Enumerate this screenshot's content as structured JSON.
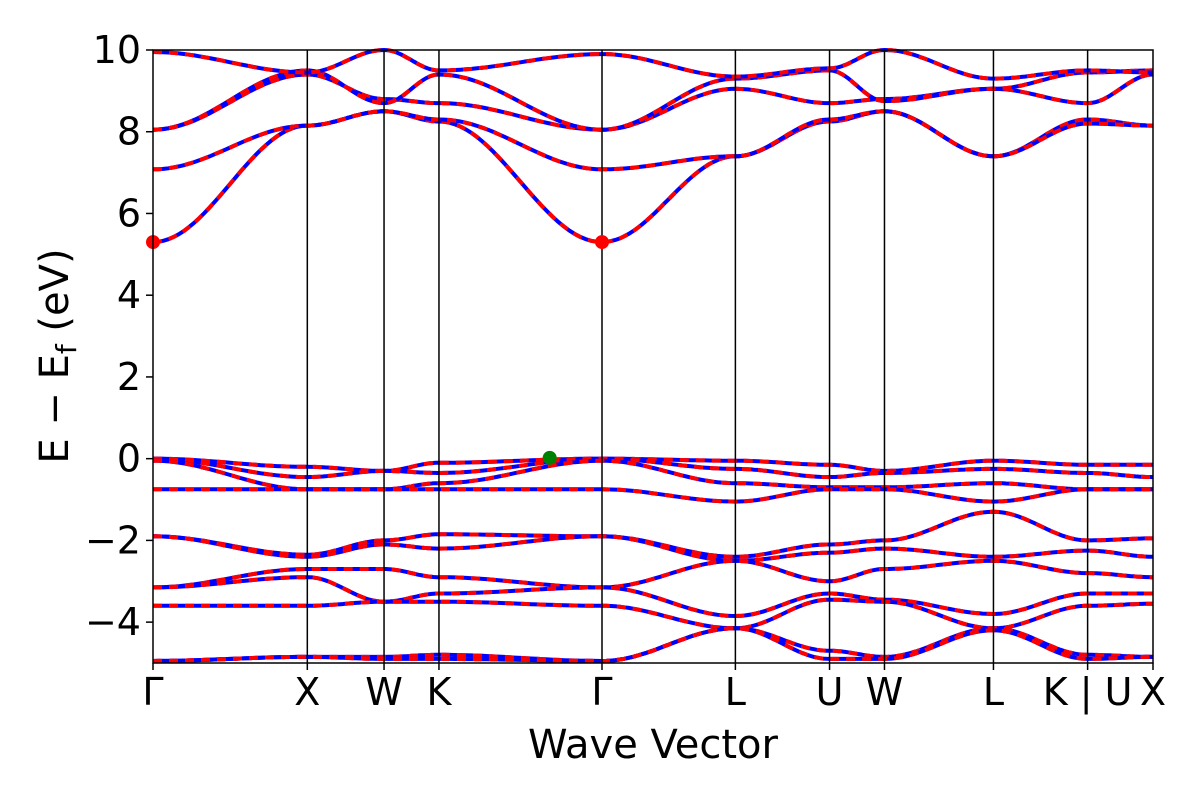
{
  "chart_data": {
    "type": "line",
    "title": "",
    "xlabel": "Wave Vector",
    "ylabel": "E − E",
    "ylabel_subscript": "f",
    "ylabel_unit": " (eV)",
    "ylim": [
      -5,
      10
    ],
    "yticks": [
      -4,
      -2,
      0,
      2,
      4,
      6,
      8,
      10
    ],
    "ytick_labels": [
      "−4",
      "−2",
      "0",
      "2",
      "4",
      "6",
      "8",
      "10"
    ],
    "xlim": [
      0,
      11.47
    ],
    "kpoints": [
      {
        "label": "Γ",
        "x": 0
      },
      {
        "label": "X",
        "x": 1.77
      },
      {
        "label": "W",
        "x": 2.65
      },
      {
        "label": "K",
        "x": 3.28
      },
      {
        "label": "Γ",
        "x": 5.15
      },
      {
        "label": "L",
        "x": 6.68
      },
      {
        "label": "U",
        "x": 7.76
      },
      {
        "label": "W",
        "x": 8.39
      },
      {
        "label": "L",
        "x": 9.64
      },
      {
        "label": "K | U",
        "x": 10.72
      },
      {
        "label": "X",
        "x": 11.47
      }
    ],
    "band_colors": {
      "spin_up": "#ff0000",
      "spin_down": "#0000ff"
    },
    "series": [
      {
        "kind": "conduction",
        "values": [
          5.3,
          8.15,
          8.5,
          8.25,
          5.3,
          7.4,
          8.25,
          8.5,
          7.4,
          8.3,
          8.15
        ]
      },
      {
        "kind": "conduction",
        "values": [
          7.08,
          8.15,
          8.5,
          8.3,
          7.08,
          7.4,
          8.3,
          8.5,
          7.4,
          8.2,
          8.15
        ]
      },
      {
        "kind": "conduction",
        "values": [
          8.05,
          9.4,
          8.8,
          8.7,
          8.05,
          9.05,
          8.7,
          8.8,
          9.05,
          8.7,
          9.4
        ]
      },
      {
        "kind": "conduction",
        "values": [
          8.05,
          9.5,
          8.7,
          9.4,
          8.05,
          9.3,
          9.5,
          8.75,
          9.05,
          9.45,
          9.5
        ]
      },
      {
        "kind": "conduction",
        "values": [
          9.95,
          9.45,
          10.0,
          9.5,
          9.9,
          9.35,
          9.55,
          10.0,
          9.3,
          9.5,
          9.45
        ]
      },
      {
        "kind": "valence",
        "values": [
          0.0,
          -0.2,
          -0.3,
          -0.1,
          0.0,
          -0.05,
          -0.15,
          -0.3,
          -0.05,
          -0.15,
          -0.15
        ]
      },
      {
        "kind": "valence",
        "values": [
          0.0,
          -0.45,
          -0.3,
          -0.35,
          0.0,
          -0.25,
          -0.45,
          -0.35,
          -0.25,
          -0.35,
          -0.45
        ]
      },
      {
        "kind": "valence",
        "values": [
          -0.05,
          -0.75,
          -0.75,
          -0.6,
          -0.05,
          -0.6,
          -0.7,
          -0.7,
          -0.6,
          -0.75,
          -0.75
        ]
      },
      {
        "kind": "valence",
        "values": [
          -0.75,
          -0.75,
          -0.75,
          -0.75,
          -0.75,
          -1.05,
          -0.75,
          -0.75,
          -1.05,
          -0.75,
          -0.75
        ]
      },
      {
        "kind": "valence",
        "values": [
          -1.9,
          -2.35,
          -2.0,
          -1.85,
          -1.9,
          -2.4,
          -2.1,
          -2.0,
          -1.3,
          -2.0,
          -1.95
        ]
      },
      {
        "kind": "valence",
        "values": [
          -1.9,
          -2.4,
          -2.1,
          -2.2,
          -1.9,
          -2.5,
          -2.3,
          -2.2,
          -2.4,
          -2.25,
          -2.4
        ]
      },
      {
        "kind": "valence",
        "values": [
          -3.15,
          -2.7,
          -2.7,
          -2.9,
          -3.15,
          -2.5,
          -3.0,
          -2.7,
          -2.5,
          -2.8,
          -2.9
        ]
      },
      {
        "kind": "valence",
        "values": [
          -3.15,
          -2.9,
          -3.5,
          -3.3,
          -3.15,
          -3.85,
          -3.3,
          -3.45,
          -3.8,
          -3.3,
          -3.3
        ]
      },
      {
        "kind": "valence",
        "values": [
          -3.6,
          -3.6,
          -3.5,
          -3.5,
          -3.6,
          -4.15,
          -3.45,
          -3.5,
          -4.15,
          -3.6,
          -3.55
        ]
      },
      {
        "kind": "valence",
        "values": [
          -4.95,
          -4.85,
          -4.85,
          -4.8,
          -4.95,
          -4.15,
          -4.7,
          -4.85,
          -4.15,
          -4.8,
          -4.85
        ]
      },
      {
        "kind": "valence",
        "values": [
          -4.95,
          -4.85,
          -4.9,
          -4.9,
          -4.95,
          -4.15,
          -4.9,
          -4.9,
          -4.2,
          -4.9,
          -4.85
        ]
      }
    ],
    "markers": [
      {
        "label": "CBM",
        "x": 0,
        "y": 5.3,
        "color": "#ff0000"
      },
      {
        "label": "CBM",
        "x": 5.15,
        "y": 5.3,
        "color": "#ff0000"
      },
      {
        "label": "VBM",
        "x": 4.55,
        "y": 0.02,
        "color": "#008000"
      }
    ],
    "grid": false,
    "legend": "none"
  }
}
